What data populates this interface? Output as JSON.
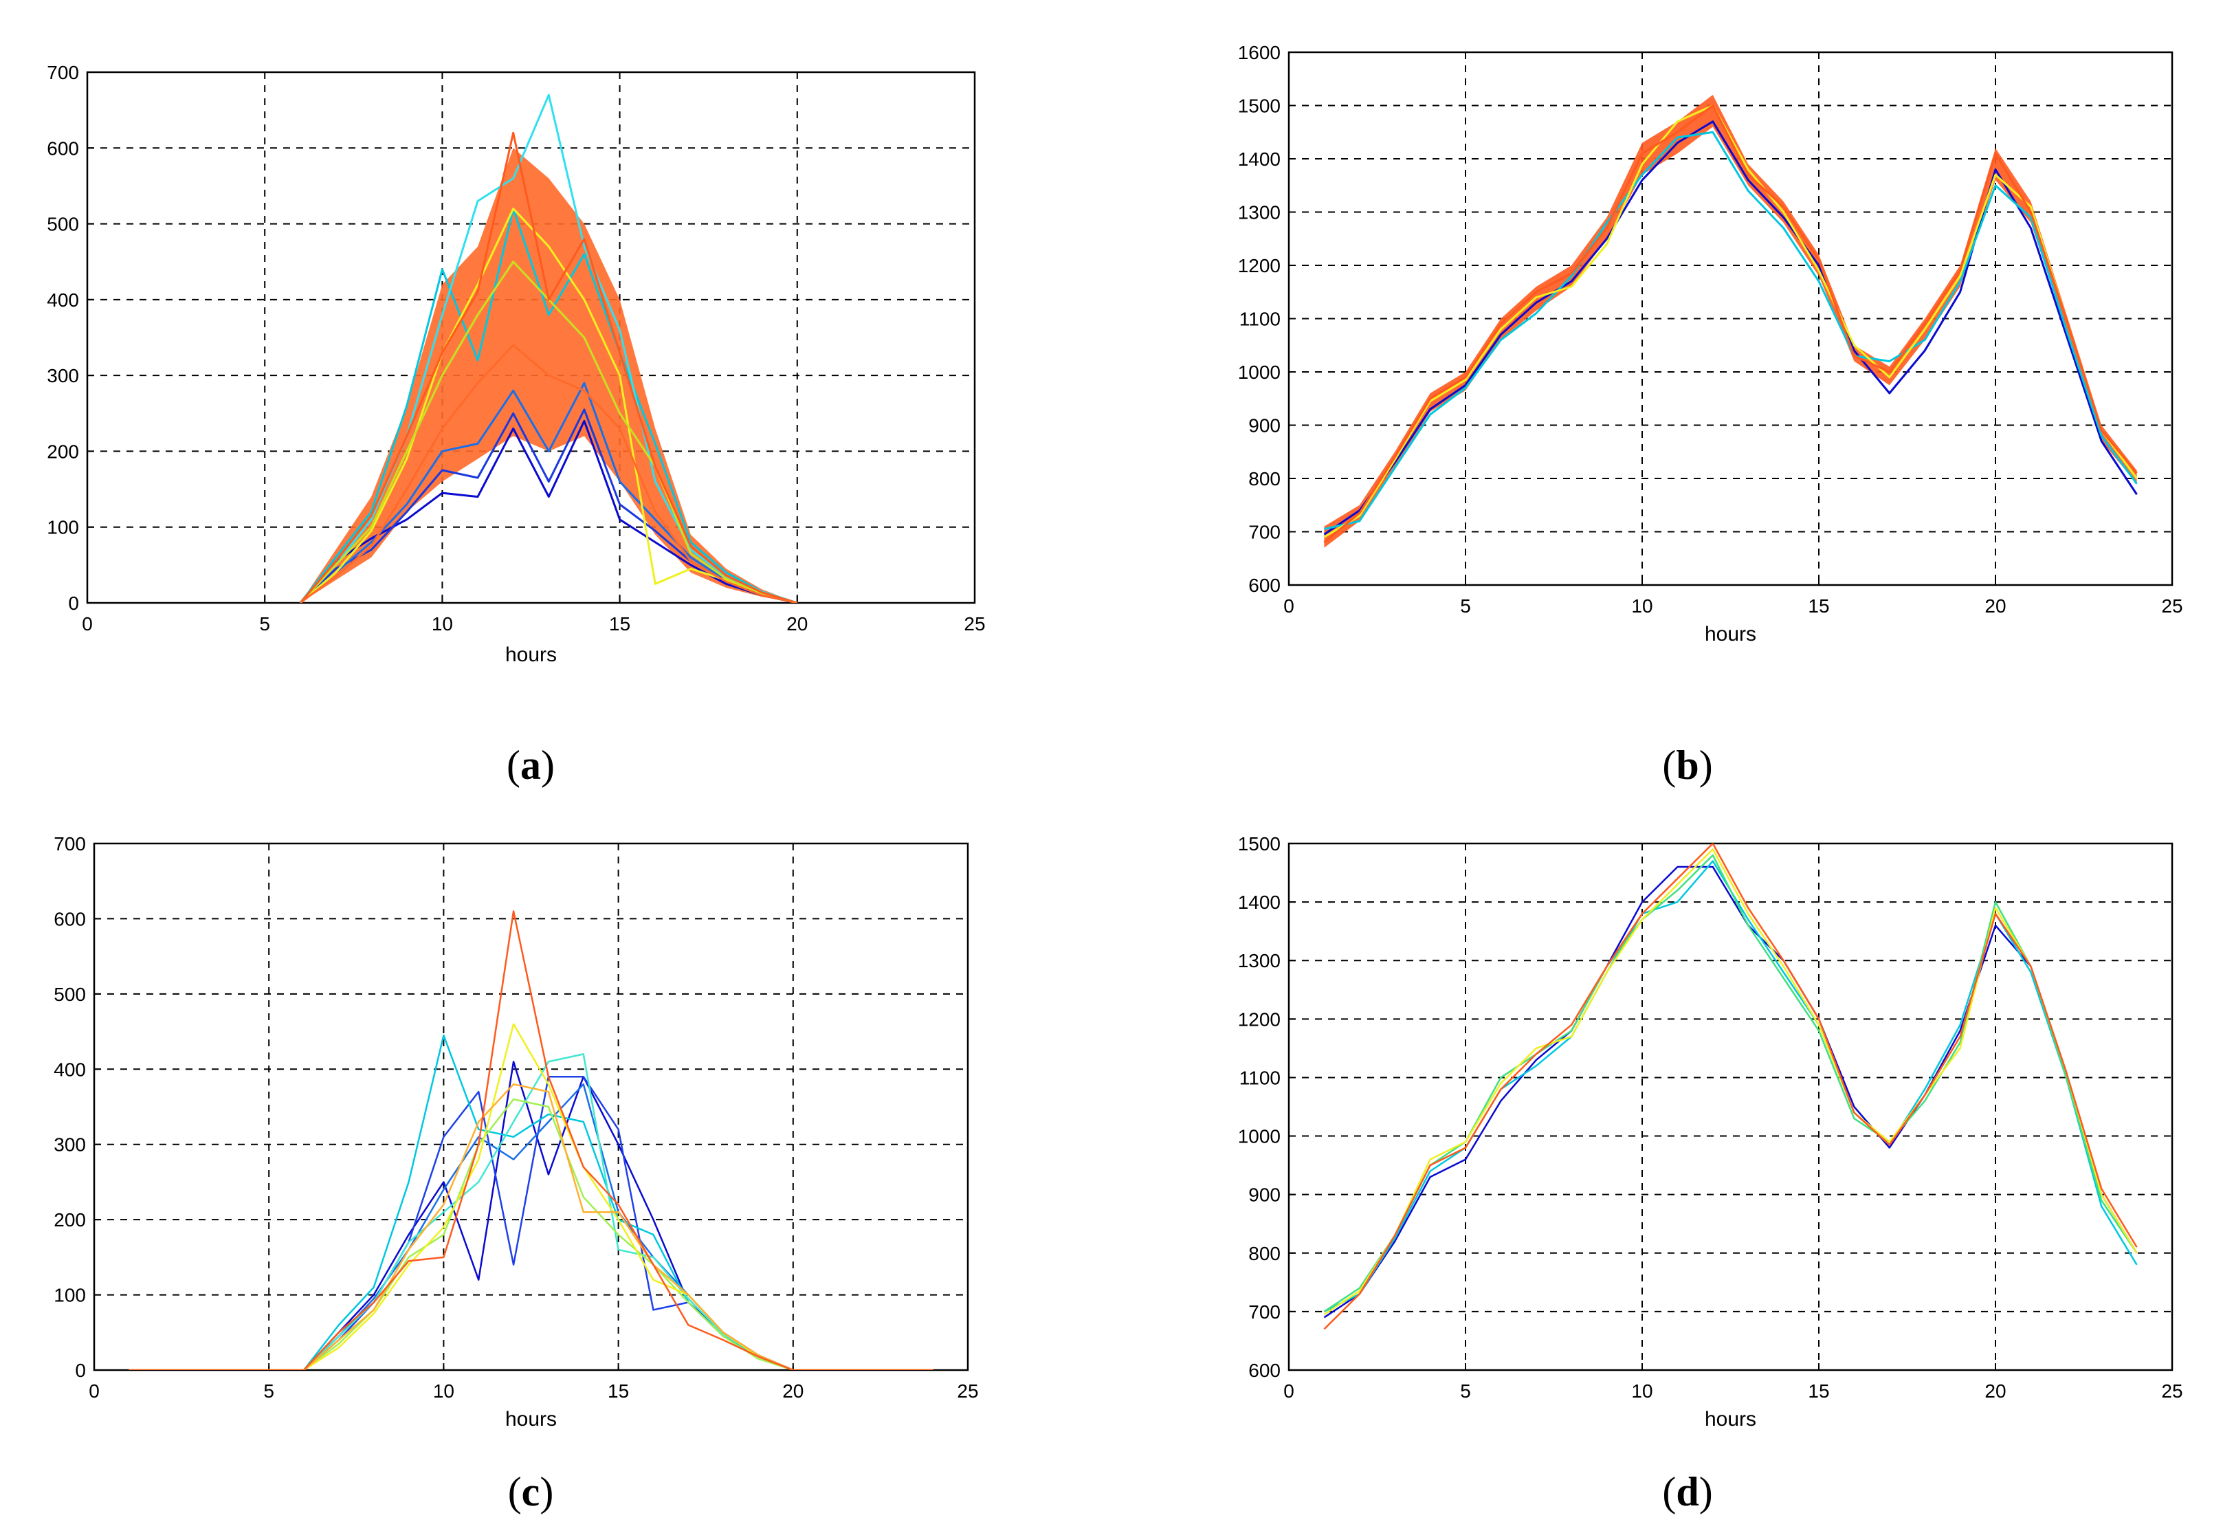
{
  "chart_data": [
    {
      "panel": "a",
      "caption": "(a)",
      "type": "line",
      "xlabel": "hours",
      "ylabel": "",
      "xlim": [
        0,
        25
      ],
      "ylim": [
        0,
        700
      ],
      "xticks": [
        "0",
        "5",
        "10",
        "15",
        "20",
        "25"
      ],
      "yticks": [
        "0",
        "100",
        "200",
        "300",
        "400",
        "500",
        "600",
        "700"
      ],
      "grid": true,
      "x": [
        6,
        7,
        8,
        9,
        10,
        11,
        12,
        13,
        14,
        15,
        16,
        17,
        18,
        19,
        20
      ],
      "series": [
        {
          "color": "#0a0ad0",
          "values": [
            0,
            55,
            85,
            110,
            145,
            140,
            230,
            140,
            240,
            110,
            80,
            50,
            25,
            10,
            0
          ]
        },
        {
          "color": "#1a3ae0",
          "values": [
            0,
            45,
            70,
            120,
            175,
            165,
            250,
            160,
            255,
            130,
            95,
            55,
            28,
            12,
            0
          ]
        },
        {
          "color": "#1b6fe8",
          "values": [
            0,
            40,
            80,
            130,
            200,
            210,
            280,
            200,
            290,
            160,
            110,
            60,
            30,
            12,
            0
          ]
        },
        {
          "color": "#00c8e0",
          "values": [
            0,
            60,
            120,
            260,
            440,
            320,
            520,
            380,
            460,
            330,
            210,
            80,
            40,
            15,
            0
          ]
        },
        {
          "color": "#30e0f0",
          "values": [
            0,
            50,
            110,
            220,
            380,
            530,
            560,
            670,
            470,
            360,
            160,
            70,
            35,
            15,
            0
          ]
        },
        {
          "color": "#f0f020",
          "values": [
            0,
            40,
            95,
            190,
            330,
            420,
            520,
            470,
            400,
            300,
            25,
            45,
            30,
            12,
            0
          ]
        },
        {
          "color": "#c8e020",
          "values": [
            0,
            50,
            100,
            200,
            300,
            380,
            450,
            400,
            350,
            250,
            180,
            65,
            32,
            12,
            0
          ]
        },
        {
          "color": "#ff5a1e",
          "values": [
            0,
            55,
            115,
            220,
            330,
            410,
            620,
            400,
            480,
            330,
            180,
            75,
            36,
            14,
            0
          ]
        },
        {
          "color": "#ff6a2a",
          "values": [
            0,
            35,
            75,
            150,
            230,
            290,
            340,
            300,
            280,
            230,
            120,
            55,
            28,
            10,
            0
          ]
        }
      ],
      "band": {
        "color": "#ff6a2a",
        "lower": [
          0,
          30,
          60,
          120,
          160,
          190,
          220,
          200,
          220,
          160,
          90,
          40,
          20,
          8,
          0
        ],
        "upper": [
          0,
          70,
          140,
          260,
          420,
          470,
          600,
          560,
          500,
          400,
          230,
          90,
          45,
          18,
          0
        ]
      }
    },
    {
      "panel": "b",
      "caption": "(b)",
      "type": "line",
      "xlabel": "hours",
      "ylabel": "",
      "xlim": [
        0,
        25
      ],
      "ylim": [
        600,
        1600
      ],
      "xticks": [
        "0",
        "5",
        "10",
        "15",
        "20",
        "25"
      ],
      "yticks": [
        "600",
        "700",
        "800",
        "900",
        "1000",
        "1100",
        "1200",
        "1300",
        "1400",
        "1500",
        "1600"
      ],
      "grid": true,
      "x": [
        1,
        2,
        3,
        4,
        5,
        6,
        7,
        8,
        9,
        10,
        11,
        12,
        13,
        14,
        15,
        16,
        17,
        18,
        19,
        20,
        21,
        22,
        23,
        24
      ],
      "series": [
        {
          "color": "#0a0ad0",
          "values": [
            695,
            740,
            830,
            930,
            975,
            1070,
            1130,
            1170,
            1250,
            1360,
            1430,
            1470,
            1360,
            1290,
            1200,
            1040,
            960,
            1040,
            1150,
            1380,
            1270,
            1070,
            870,
            770
          ]
        },
        {
          "color": "#00c8e0",
          "values": [
            705,
            720,
            820,
            920,
            970,
            1060,
            1110,
            1180,
            1280,
            1370,
            1440,
            1450,
            1340,
            1270,
            1170,
            1030,
            1020,
            1060,
            1170,
            1350,
            1290,
            1080,
            880,
            790
          ]
        },
        {
          "color": "#f0f020",
          "values": [
            690,
            730,
            835,
            945,
            985,
            1080,
            1140,
            1160,
            1240,
            1390,
            1470,
            1500,
            1380,
            1300,
            1190,
            1050,
            990,
            1080,
            1180,
            1370,
            1310,
            1100,
            890,
            800
          ]
        },
        {
          "color": "#ff5a1e",
          "values": [
            680,
            735,
            840,
            950,
            990,
            1090,
            1150,
            1185,
            1270,
            1410,
            1450,
            1500,
            1370,
            1310,
            1210,
            1030,
            1000,
            1090,
            1190,
            1410,
            1300,
            1100,
            890,
            810
          ]
        }
      ],
      "band": {
        "color": "#ff5a1e",
        "lower": [
          670,
          720,
          820,
          925,
          965,
          1060,
          1115,
          1160,
          1250,
          1370,
          1410,
          1460,
          1350,
          1280,
          1180,
          1020,
          975,
          1060,
          1160,
          1360,
          1280,
          1080,
          870,
          790
        ],
        "upper": [
          710,
          750,
          850,
          960,
          1000,
          1100,
          1160,
          1200,
          1290,
          1430,
          1470,
          1520,
          1390,
          1320,
          1220,
          1050,
          1010,
          1100,
          1200,
          1420,
          1320,
          1110,
          900,
          815
        ]
      }
    },
    {
      "panel": "c",
      "caption": "(c)",
      "type": "line",
      "xlabel": "hours",
      "ylabel": "",
      "xlim": [
        0,
        25
      ],
      "ylim": [
        0,
        700
      ],
      "xticks": [
        "0",
        "5",
        "10",
        "15",
        "20",
        "25"
      ],
      "yticks": [
        "0",
        "100",
        "200",
        "300",
        "400",
        "500",
        "600",
        "700"
      ],
      "grid": true,
      "x": [
        1,
        2,
        3,
        4,
        5,
        6,
        7,
        8,
        9,
        10,
        11,
        12,
        13,
        14,
        15,
        16,
        17,
        18,
        19,
        20,
        21,
        22,
        23,
        24
      ],
      "series": [
        {
          "color": "#0a0ad0",
          "values": [
            0,
            0,
            0,
            0,
            0,
            0,
            50,
            100,
            180,
            250,
            120,
            410,
            260,
            390,
            300,
            200,
            90,
            50,
            20,
            0,
            0,
            0,
            0,
            0
          ]
        },
        {
          "color": "#2040e8",
          "values": [
            0,
            0,
            0,
            0,
            0,
            0,
            40,
            90,
            170,
            310,
            370,
            140,
            390,
            390,
            320,
            80,
            90,
            45,
            18,
            0,
            0,
            0,
            0,
            0
          ]
        },
        {
          "color": "#1b6fe8",
          "values": [
            0,
            0,
            0,
            0,
            0,
            0,
            45,
            95,
            160,
            240,
            310,
            280,
            330,
            380,
            210,
            150,
            100,
            50,
            20,
            0,
            0,
            0,
            0,
            0
          ]
        },
        {
          "color": "#00c8e0",
          "values": [
            0,
            0,
            0,
            0,
            0,
            0,
            60,
            110,
            250,
            445,
            320,
            310,
            340,
            330,
            200,
            180,
            90,
            45,
            18,
            0,
            0,
            0,
            0,
            0
          ]
        },
        {
          "color": "#40e8d0",
          "values": [
            0,
            0,
            0,
            0,
            0,
            0,
            45,
            90,
            170,
            210,
            250,
            330,
            410,
            420,
            160,
            150,
            95,
            48,
            20,
            0,
            0,
            0,
            0,
            0
          ]
        },
        {
          "color": "#a0f050",
          "values": [
            0,
            0,
            0,
            0,
            0,
            0,
            35,
            80,
            150,
            180,
            300,
            360,
            350,
            230,
            180,
            140,
            90,
            45,
            15,
            0,
            0,
            0,
            0,
            0
          ]
        },
        {
          "color": "#f0f020",
          "values": [
            0,
            0,
            0,
            0,
            0,
            0,
            30,
            75,
            140,
            190,
            280,
            460,
            380,
            270,
            200,
            120,
            100,
            50,
            18,
            0,
            0,
            0,
            0,
            0
          ]
        },
        {
          "color": "#ffb030",
          "values": [
            0,
            0,
            0,
            0,
            0,
            0,
            40,
            80,
            160,
            220,
            330,
            380,
            370,
            210,
            210,
            140,
            100,
            50,
            20,
            0,
            0,
            0,
            0,
            0
          ]
        },
        {
          "color": "#ff5a1e",
          "values": [
            0,
            0,
            0,
            0,
            0,
            0,
            50,
            90,
            145,
            150,
            300,
            610,
            390,
            270,
            220,
            140,
            60,
            40,
            18,
            0,
            0,
            0,
            0,
            0
          ]
        }
      ]
    },
    {
      "panel": "d",
      "caption": "(d)",
      "type": "line",
      "xlabel": "hours",
      "ylabel": "",
      "xlim": [
        0,
        25
      ],
      "ylim": [
        600,
        1500
      ],
      "xticks": [
        "0",
        "5",
        "10",
        "15",
        "20",
        "25"
      ],
      "yticks": [
        "600",
        "700",
        "800",
        "900",
        "1000",
        "1100",
        "1200",
        "1300",
        "1400",
        "1500"
      ],
      "grid": true,
      "x": [
        1,
        2,
        3,
        4,
        5,
        6,
        7,
        8,
        9,
        10,
        11,
        12,
        13,
        14,
        15,
        16,
        17,
        18,
        19,
        20,
        21,
        22,
        23,
        24
      ],
      "series": [
        {
          "color": "#0a0ad0",
          "values": [
            690,
            730,
            820,
            930,
            960,
            1060,
            1130,
            1180,
            1290,
            1400,
            1460,
            1460,
            1360,
            1300,
            1200,
            1050,
            980,
            1070,
            1180,
            1360,
            1290,
            1110,
            900,
            800
          ]
        },
        {
          "color": "#00c8e0",
          "values": [
            700,
            730,
            825,
            940,
            980,
            1080,
            1120,
            1170,
            1280,
            1380,
            1400,
            1470,
            1370,
            1280,
            1190,
            1040,
            985,
            1080,
            1190,
            1380,
            1280,
            1100,
            880,
            780
          ]
        },
        {
          "color": "#40e080",
          "values": [
            700,
            740,
            830,
            950,
            990,
            1100,
            1140,
            1180,
            1290,
            1370,
            1420,
            1480,
            1360,
            1270,
            1180,
            1030,
            990,
            1060,
            1160,
            1400,
            1290,
            1100,
            890,
            800
          ]
        },
        {
          "color": "#f0f020",
          "values": [
            695,
            735,
            830,
            960,
            990,
            1090,
            1150,
            1170,
            1280,
            1370,
            1430,
            1490,
            1380,
            1290,
            1190,
            1040,
            990,
            1070,
            1150,
            1390,
            1290,
            1110,
            900,
            800
          ]
        },
        {
          "color": "#ff5a1e",
          "values": [
            670,
            730,
            830,
            950,
            980,
            1080,
            1140,
            1190,
            1290,
            1380,
            1440,
            1500,
            1390,
            1300,
            1200,
            1040,
            985,
            1070,
            1170,
            1380,
            1290,
            1110,
            910,
            810
          ]
        }
      ]
    }
  ]
}
